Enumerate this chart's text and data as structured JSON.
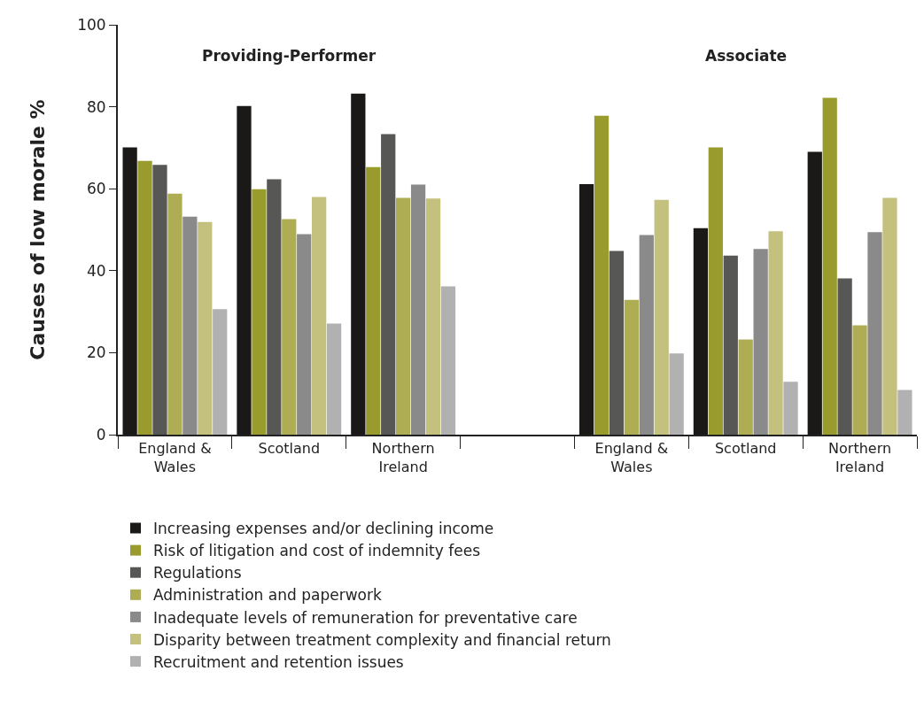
{
  "chart_data": {
    "type": "bar",
    "ylabel": "Causes of low morale %",
    "categories": [
      "England & Wales",
      "Scotland",
      "Northern Ireland",
      null,
      "England & Wales",
      "Scotland",
      "Northern Ireland"
    ],
    "series": [
      {
        "name": "Increasing expenses and/or declining income",
        "color": "#1a1917",
        "values": [
          70.1,
          80.2,
          83.2,
          null,
          61.1,
          50.4,
          69.0
        ]
      },
      {
        "name": "Risk of litigation and cost of indemnity fees",
        "color": "#999c2d",
        "values": [
          66.8,
          59.9,
          65.3,
          null,
          77.8,
          70.1,
          82.2
        ]
      },
      {
        "name": "Regulations",
        "color": "#575755",
        "values": [
          65.8,
          62.3,
          73.3,
          null,
          44.8,
          43.7,
          38.1
        ]
      },
      {
        "name": "Administration and paperwork",
        "color": "#afad53",
        "values": [
          58.8,
          52.6,
          57.8,
          null,
          32.9,
          23.2,
          26.7
        ]
      },
      {
        "name": "Inadequate levels of remuneration for preventative care",
        "color": "#8a8a8a",
        "values": [
          53.2,
          48.9,
          61.0,
          null,
          48.7,
          45.3,
          49.4
        ]
      },
      {
        "name": "Disparity between treatment complexity and financial return",
        "color": "#c4c17e",
        "values": [
          51.9,
          58.0,
          57.6,
          null,
          57.3,
          49.6,
          57.8
        ]
      },
      {
        "name": "Recruitment and retention issues",
        "color": "#b1b1b2",
        "values": [
          30.6,
          27.1,
          36.2,
          null,
          19.8,
          12.9,
          10.9
        ]
      }
    ],
    "annotations": [
      "Providing-Performer",
      "Associate"
    ],
    "ylim": [
      0,
      100
    ],
    "yticks": [
      0,
      20,
      40,
      60,
      80,
      100
    ],
    "legend": "bottom"
  }
}
